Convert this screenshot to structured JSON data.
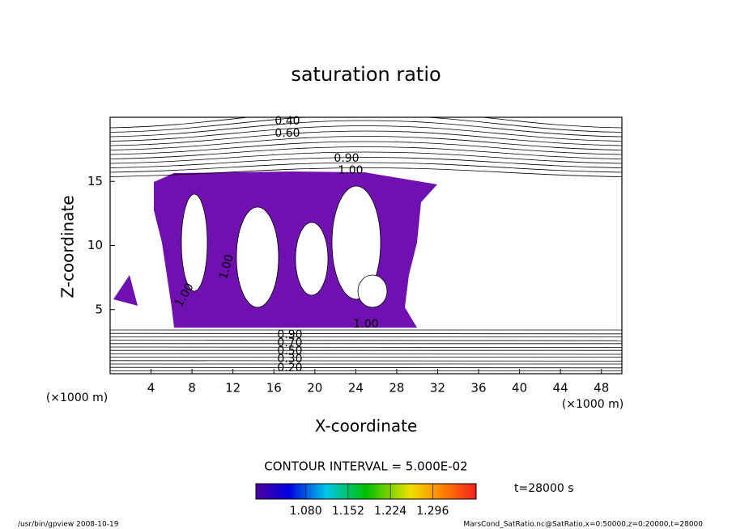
{
  "chart_data": {
    "type": "contour",
    "title": "saturation ratio",
    "xlabel": "X-coordinate",
    "ylabel": "Z-coordinate",
    "x_unit_label": "(×1000 m)",
    "xlim": [
      0,
      50
    ],
    "xticks": [
      4,
      8,
      12,
      16,
      20,
      24,
      28,
      32,
      36,
      40,
      44,
      48
    ],
    "ylim": [
      0,
      20
    ],
    "yticks": [
      5,
      10,
      15
    ],
    "color": "#7010b0",
    "contour_labels": [
      "0.40",
      "0.60",
      "0.90",
      "1.00",
      "0.90",
      "0.70",
      "0.50",
      "0.30",
      "0.20",
      "1.00",
      "1.00",
      "1.00"
    ],
    "contour_interval": "CONTOUR INTERVAL = 5.000E-02",
    "colorbar_lim": [
      0.995,
      1.37
    ],
    "colorbar_ticks": [
      {
        "value": 1.08,
        "label": "1.080"
      },
      {
        "value": 1.152,
        "label": "1.152"
      },
      {
        "value": 1.224,
        "label": "1.224"
      },
      {
        "value": 1.296,
        "label": "1.296"
      }
    ],
    "time_label": "t=28000 s",
    "footer_left": "/usr/bin/gpview   2008-10-19",
    "footer_right": "MarsCond_SatRatio.nc@SatRatio,x=0:50000,z=0:20000,t=28000"
  }
}
